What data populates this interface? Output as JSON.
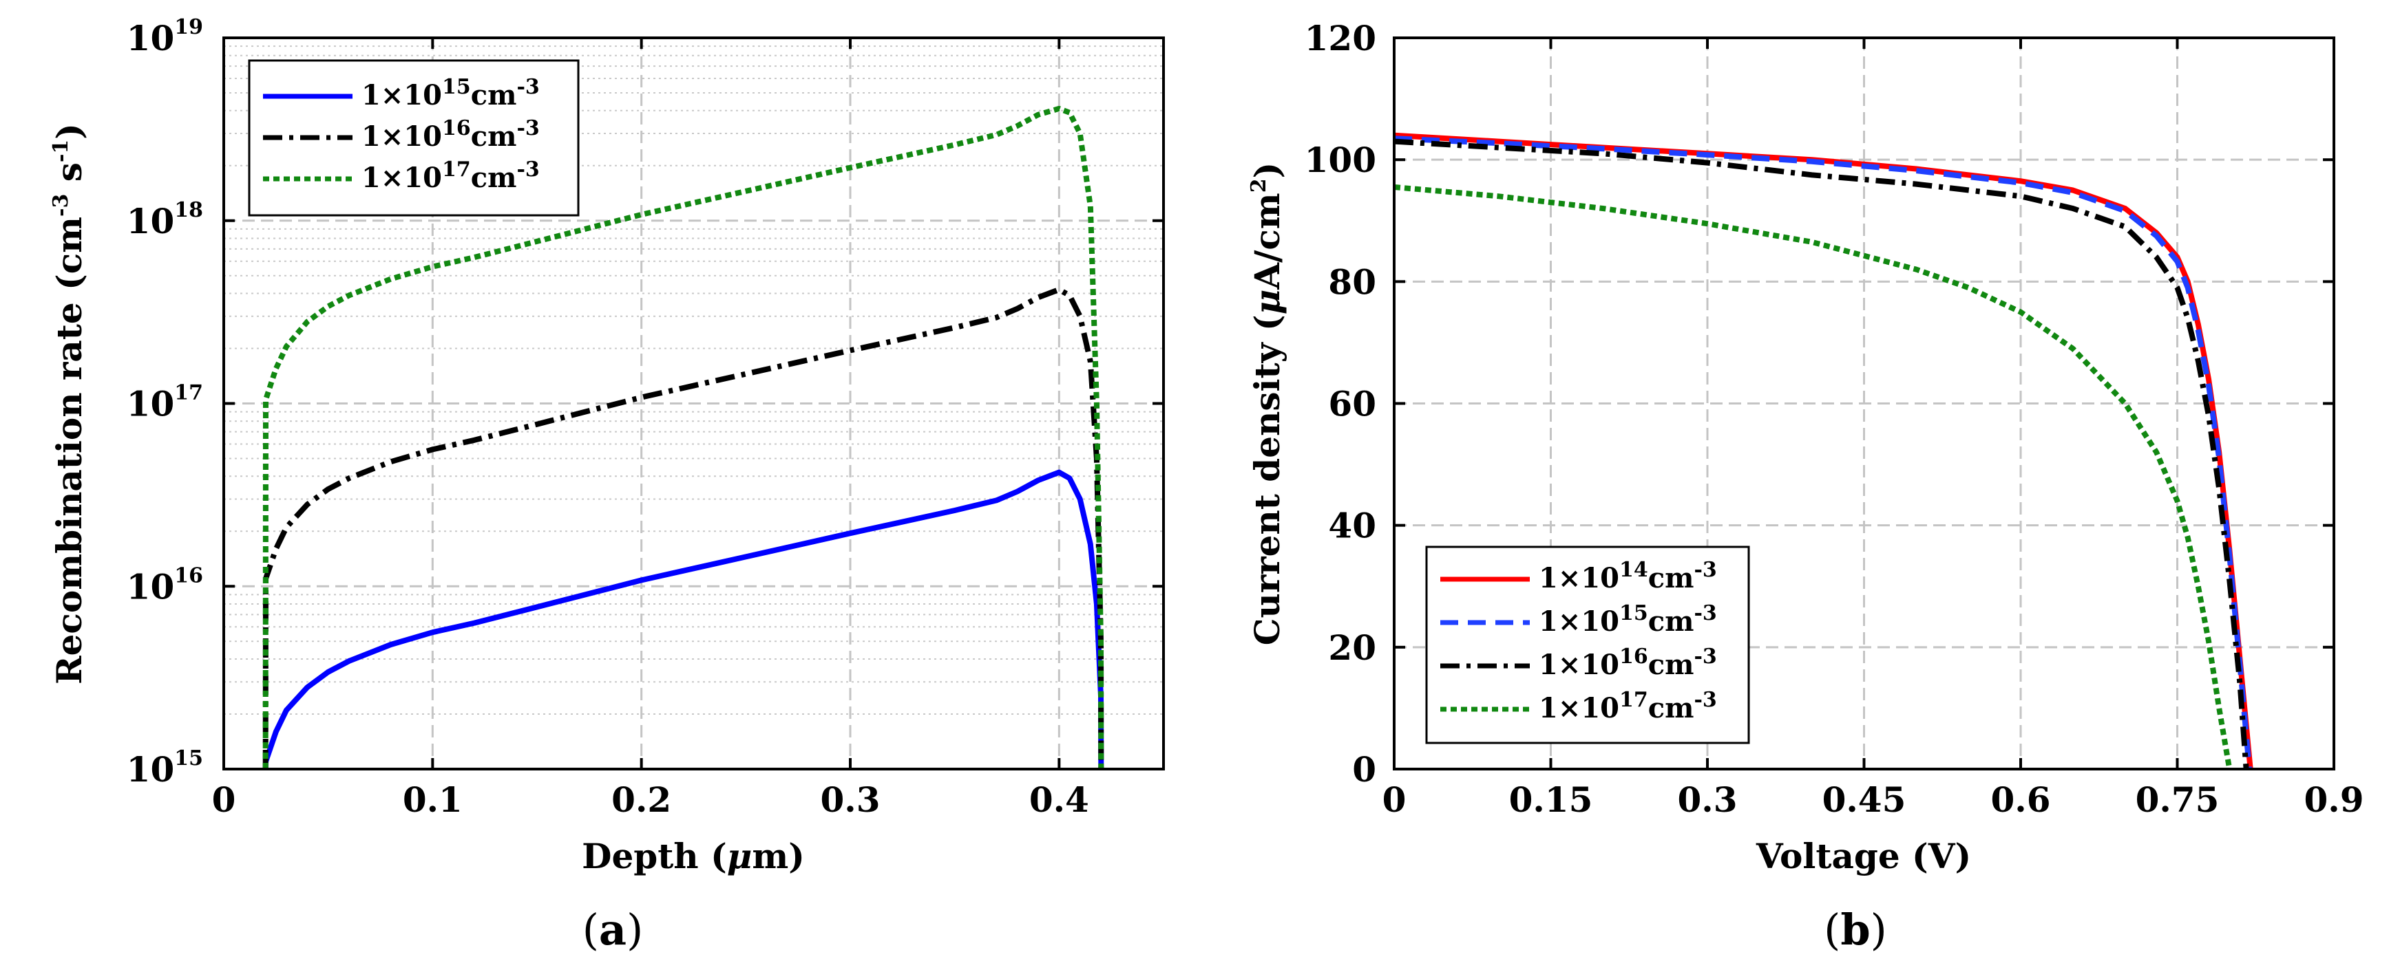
{
  "chart_data": [
    {
      "type": "line",
      "panel_label": "a",
      "xlabel_prefix": "Depth (",
      "xlabel_mu": "μ",
      "xlabel_suffix": "m)",
      "ylabel_prefix": "Recombination rate (cm",
      "ylabel_exp1": "-3",
      "ylabel_mid": " s",
      "ylabel_exp2": "-1",
      "ylabel_suffix": ")",
      "yscale": "log",
      "xlim": [
        0,
        0.45
      ],
      "ylim": [
        1000000000000000.0,
        1e+19
      ],
      "xticks": [
        0,
        0.1,
        0.2,
        0.3,
        0.4
      ],
      "xtick_labels": [
        "0",
        "0.1",
        "0.2",
        "0.3",
        "0.4"
      ],
      "yticks": [
        1000000000000000.0,
        1e+16,
        1e+17,
        1e+18,
        1e+19
      ],
      "ytick_labels": [
        {
          "base": "10",
          "exp": "15"
        },
        {
          "base": "10",
          "exp": "16"
        },
        {
          "base": "10",
          "exp": "17"
        },
        {
          "base": "10",
          "exp": "18"
        },
        {
          "base": "10",
          "exp": "19"
        }
      ],
      "grid": true,
      "minor_grid": true,
      "legend_position": "top-left",
      "series": [
        {
          "name": "1×10^15 cm^-3",
          "legend_main": "1×10",
          "legend_exp": "15",
          "legend_unit": "cm",
          "legend_unit_exp": "-3",
          "color": "#0000ff",
          "style": "solid",
          "x": [
            0.02,
            0.0201,
            0.025,
            0.03,
            0.04,
            0.05,
            0.06,
            0.08,
            0.1,
            0.12,
            0.15,
            0.2,
            0.25,
            0.3,
            0.35,
            0.37,
            0.38,
            0.39,
            0.4,
            0.405,
            0.41,
            0.415,
            0.418,
            0.42,
            0.4201
          ],
          "y": [
            1000000000000000.0,
            1100000000000000.0,
            1600000000000000.0,
            2100000000000000.0,
            2800000000000000.0,
            3400000000000000.0,
            3900000000000000.0,
            4800000000000000.0,
            5600000000000000.0,
            6300000000000000.0,
            7700000000000000.0,
            1.08e+16,
            1.45e+16,
            1.95e+16,
            2.6e+16,
            2.95e+16,
            3.3e+16,
            3.8e+16,
            4.2e+16,
            3.9e+16,
            3e+16,
            1.7e+16,
            8000000000000000.0,
            2500000000000000.0,
            1000000000000000.0
          ]
        },
        {
          "name": "1×10^16 cm^-3",
          "legend_main": "1×10",
          "legend_exp": "16",
          "legend_unit": "cm",
          "legend_unit_exp": "-3",
          "color": "#000000",
          "style": "dashdot",
          "x": [
            0.02,
            0.0201,
            0.025,
            0.03,
            0.04,
            0.05,
            0.06,
            0.08,
            0.1,
            0.12,
            0.15,
            0.2,
            0.25,
            0.3,
            0.35,
            0.37,
            0.38,
            0.39,
            0.4,
            0.405,
            0.41,
            0.415,
            0.418,
            0.42,
            0.4201
          ],
          "y": [
            1000000000000000.0,
            1.1e+16,
            1.6e+16,
            2.1e+16,
            2.8e+16,
            3.4e+16,
            3.9e+16,
            4.8e+16,
            5.6e+16,
            6.3e+16,
            7.7e+16,
            1.08e+17,
            1.45e+17,
            1.95e+17,
            2.6e+17,
            2.95e+17,
            3.3e+17,
            3.8e+17,
            4.2e+17,
            3.9e+17,
            3e+17,
            1.7e+17,
            5e+16,
            5000000000000000.0,
            1000000000000000.0
          ]
        },
        {
          "name": "1×10^17 cm^-3",
          "legend_main": "1×10",
          "legend_exp": "17",
          "legend_unit": "cm",
          "legend_unit_exp": "-3",
          "color": "#118811",
          "style": "dotted",
          "x": [
            0.02,
            0.0201,
            0.025,
            0.03,
            0.04,
            0.05,
            0.06,
            0.08,
            0.1,
            0.12,
            0.15,
            0.2,
            0.25,
            0.3,
            0.35,
            0.37,
            0.38,
            0.39,
            0.4,
            0.405,
            0.41,
            0.415,
            0.418,
            0.42,
            0.4201
          ],
          "y": [
            1000000000000000.0,
            1.05e+17,
            1.55e+17,
            2.05e+17,
            2.8e+17,
            3.4e+17,
            3.9e+17,
            4.8e+17,
            5.6e+17,
            6.3e+17,
            7.7e+17,
            1.08e+18,
            1.45e+18,
            1.95e+18,
            2.6e+18,
            2.95e+18,
            3.3e+18,
            3.8e+18,
            4.1e+18,
            3.9e+18,
            3e+18,
            1.2e+18,
            1e+17,
            5000000000000000.0,
            1000000000000000.0
          ]
        }
      ]
    },
    {
      "type": "line",
      "panel_label": "b",
      "xlabel": "Voltage (V)",
      "ylabel_prefix": "Current density (",
      "ylabel_mu": "μ",
      "ylabel_mid": "A/cm",
      "ylabel_exp": "2",
      "ylabel_suffix": ")",
      "xlim": [
        0,
        0.9
      ],
      "ylim": [
        0,
        120
      ],
      "xticks": [
        0,
        0.15,
        0.3,
        0.45,
        0.6,
        0.75,
        0.9
      ],
      "xtick_labels": [
        "0",
        "0.15",
        "0.3",
        "0.45",
        "0.6",
        "0.75",
        "0.9"
      ],
      "yticks": [
        0,
        20,
        40,
        60,
        80,
        100,
        120
      ],
      "ytick_labels": [
        "0",
        "20",
        "40",
        "60",
        "80",
        "100",
        "120"
      ],
      "grid": true,
      "legend_position": "bottom-left",
      "series": [
        {
          "name": "1×10^14 cm^-3",
          "legend_main": "1×10",
          "legend_exp": "14",
          "legend_unit": "cm",
          "legend_unit_exp": "-3",
          "color": "#ff0000",
          "style": "solid",
          "x": [
            0,
            0.1,
            0.2,
            0.3,
            0.4,
            0.5,
            0.6,
            0.65,
            0.7,
            0.73,
            0.75,
            0.76,
            0.77,
            0.78,
            0.79,
            0.8,
            0.81,
            0.82
          ],
          "y": [
            104,
            103,
            102,
            101,
            100,
            98.5,
            96.5,
            95,
            92,
            88,
            84,
            80,
            73,
            64,
            52,
            36,
            18,
            0
          ]
        },
        {
          "name": "1×10^15 cm^-3",
          "legend_main": "1×10",
          "legend_exp": "15",
          "legend_unit": "cm",
          "legend_unit_exp": "-3",
          "color": "#1f3fff",
          "style": "dashed",
          "x": [
            0,
            0.1,
            0.2,
            0.3,
            0.4,
            0.5,
            0.6,
            0.65,
            0.7,
            0.73,
            0.75,
            0.76,
            0.77,
            0.78,
            0.79,
            0.8,
            0.81,
            0.819
          ],
          "y": [
            103.5,
            102.7,
            101.8,
            100.8,
            99.7,
            98.2,
            96.2,
            94.6,
            91.6,
            87.5,
            83.3,
            79,
            72,
            63,
            51,
            35,
            17,
            0
          ]
        },
        {
          "name": "1×10^16 cm^-3",
          "legend_main": "1×10",
          "legend_exp": "16",
          "legend_unit": "cm",
          "legend_unit_exp": "-3",
          "color": "#000000",
          "style": "dashdot",
          "x": [
            0,
            0.1,
            0.2,
            0.3,
            0.4,
            0.5,
            0.6,
            0.65,
            0.7,
            0.73,
            0.75,
            0.76,
            0.77,
            0.78,
            0.79,
            0.8,
            0.81,
            0.816
          ],
          "y": [
            103,
            102,
            101,
            99.5,
            97.5,
            96,
            94,
            92,
            89,
            84,
            79,
            74,
            67,
            58,
            46,
            31,
            14,
            0
          ]
        },
        {
          "name": "1×10^17 cm^-3",
          "legend_main": "1×10",
          "legend_exp": "17",
          "legend_unit": "cm",
          "legend_unit_exp": "-3",
          "color": "#118811",
          "style": "dotted",
          "x": [
            0,
            0.1,
            0.2,
            0.3,
            0.4,
            0.5,
            0.55,
            0.6,
            0.65,
            0.7,
            0.73,
            0.75,
            0.76,
            0.77,
            0.78,
            0.79,
            0.8
          ],
          "y": [
            95.5,
            94,
            92,
            89.5,
            86.5,
            82,
            79,
            75,
            69,
            60,
            52,
            44,
            38,
            30,
            21,
            10,
            0
          ]
        }
      ]
    }
  ]
}
